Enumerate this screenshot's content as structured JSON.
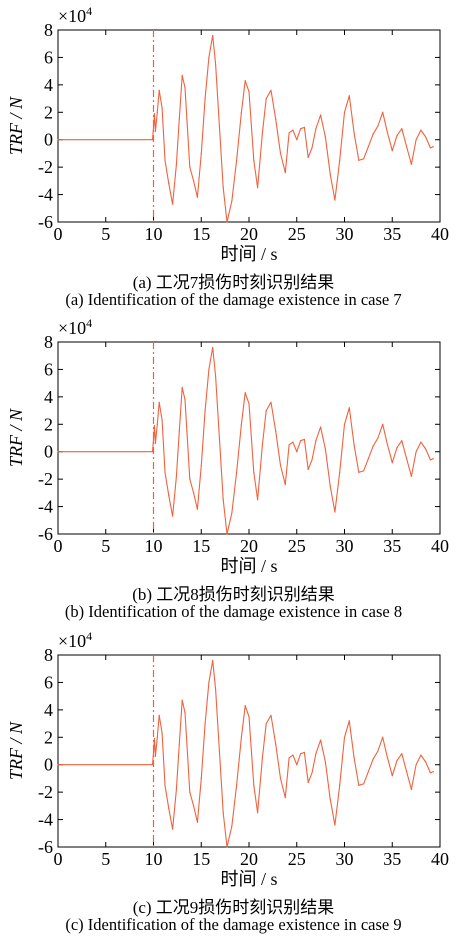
{
  "colors": {
    "signal": "#f0623e",
    "axis": "#000000"
  },
  "panels": [
    {
      "caption_zh": "(a) 工况7损伤时刻识别结果",
      "caption_en": "(a) Identification of the damage existence in case 7"
    },
    {
      "caption_zh": "(b) 工况8损伤时刻识别结果",
      "caption_en": "(b) Identification of the damage existence in case 8"
    },
    {
      "caption_zh": "(c) 工况9损伤时刻识别结果",
      "caption_en": "(c) Identification of the damage existence in case 9"
    }
  ],
  "chart_data": [
    {
      "type": "line",
      "xlabel": "时间 / s",
      "ylabel": "TRF / N",
      "yscale_label": "×10",
      "yscale_exp": "4",
      "xlim": [
        0,
        40
      ],
      "ylim": [
        -6,
        8
      ],
      "xticks": [
        0,
        5,
        10,
        15,
        20,
        25,
        30,
        35,
        40
      ],
      "yticks": [
        -6,
        -4,
        -2,
        0,
        2,
        4,
        6,
        8
      ],
      "damage_line_x": 10,
      "series": [
        {
          "x": [
            0,
            9.9,
            10.0,
            10.1,
            10.2,
            10.4,
            10.6,
            10.9,
            11.2,
            11.6,
            12.0,
            12.4,
            12.7,
            13.0,
            13.3,
            13.5,
            13.8,
            14.2,
            14.6,
            15.0,
            15.4,
            15.8,
            16.2,
            16.5,
            16.9,
            17.3,
            17.7,
            18.2,
            18.7,
            19.2,
            19.6,
            20.0,
            20.5,
            20.9,
            21.4,
            21.8,
            22.3,
            22.8,
            23.3,
            23.8,
            24.2,
            24.6,
            25.0,
            25.4,
            25.8,
            26.2,
            26.6,
            27.0,
            27.5,
            28.0,
            28.5,
            29.0,
            29.5,
            30.0,
            30.5,
            31.0,
            31.5,
            32.0,
            32.5,
            33.0,
            33.5,
            34.0,
            34.5,
            35.0,
            35.5,
            36.0,
            36.5,
            37.0,
            37.5,
            38.0,
            38.5,
            39.0,
            39.3
          ],
          "values": [
            0,
            0,
            0.9,
            1.9,
            0.6,
            2.0,
            3.6,
            2.3,
            -1.5,
            -3.2,
            -4.7,
            -1.8,
            1.5,
            4.7,
            3.8,
            1.5,
            -2.0,
            -3.0,
            -4.2,
            -1.0,
            3.0,
            6.0,
            7.6,
            5.5,
            1.0,
            -3.5,
            -6.0,
            -4.5,
            -1.5,
            2.0,
            4.3,
            3.5,
            -1.5,
            -3.5,
            0.5,
            3.0,
            3.6,
            1.5,
            -1.0,
            -2.4,
            0.5,
            0.7,
            0.0,
            0.8,
            0.9,
            -1.3,
            -0.6,
            0.8,
            1.8,
            0.2,
            -2.5,
            -4.4,
            -1.5,
            2.0,
            3.2,
            0.5,
            -1.5,
            -1.4,
            -0.5,
            0.4,
            1.0,
            2.0,
            0.5,
            -0.8,
            0.3,
            0.8,
            -0.5,
            -1.8,
            0.0,
            0.7,
            0.2,
            -0.6,
            -0.5
          ]
        }
      ]
    },
    {
      "type": "line",
      "xlabel": "时间 / s",
      "ylabel": "TRF / N",
      "yscale_label": "×10",
      "yscale_exp": "4",
      "xlim": [
        0,
        40
      ],
      "ylim": [
        -6,
        8
      ],
      "xticks": [
        0,
        5,
        10,
        15,
        20,
        25,
        30,
        35,
        40
      ],
      "yticks": [
        -6,
        -4,
        -2,
        0,
        2,
        4,
        6,
        8
      ],
      "damage_line_x": 10,
      "series": [
        {
          "x": [
            0,
            9.9,
            10.0,
            10.1,
            10.2,
            10.4,
            10.6,
            10.9,
            11.2,
            11.6,
            12.0,
            12.4,
            12.7,
            13.0,
            13.3,
            13.5,
            13.8,
            14.2,
            14.6,
            15.0,
            15.4,
            15.8,
            16.2,
            16.5,
            16.9,
            17.3,
            17.7,
            18.2,
            18.7,
            19.2,
            19.6,
            20.0,
            20.5,
            20.9,
            21.4,
            21.8,
            22.3,
            22.8,
            23.3,
            23.8,
            24.2,
            24.6,
            25.0,
            25.4,
            25.8,
            26.2,
            26.6,
            27.0,
            27.5,
            28.0,
            28.5,
            29.0,
            29.5,
            30.0,
            30.5,
            31.0,
            31.5,
            32.0,
            32.5,
            33.0,
            33.5,
            34.0,
            34.5,
            35.0,
            35.5,
            36.0,
            36.5,
            37.0,
            37.5,
            38.0,
            38.5,
            39.0,
            39.3
          ],
          "values": [
            0,
            0,
            0.9,
            1.9,
            0.6,
            2.0,
            3.6,
            2.3,
            -1.5,
            -3.2,
            -4.7,
            -1.8,
            1.5,
            4.7,
            3.8,
            1.5,
            -2.0,
            -3.0,
            -4.2,
            -1.0,
            3.0,
            6.0,
            7.6,
            5.5,
            1.0,
            -3.5,
            -6.0,
            -4.5,
            -1.5,
            2.0,
            4.3,
            3.5,
            -1.5,
            -3.5,
            0.5,
            3.0,
            3.6,
            1.5,
            -1.0,
            -2.4,
            0.5,
            0.7,
            0.0,
            0.8,
            0.9,
            -1.3,
            -0.6,
            0.8,
            1.8,
            0.2,
            -2.5,
            -4.4,
            -1.5,
            2.0,
            3.2,
            0.5,
            -1.5,
            -1.4,
            -0.5,
            0.4,
            1.0,
            2.0,
            0.5,
            -0.8,
            0.3,
            0.8,
            -0.5,
            -1.8,
            0.0,
            0.7,
            0.2,
            -0.6,
            -0.5
          ]
        }
      ]
    },
    {
      "type": "line",
      "xlabel": "时间 / s",
      "ylabel": "TRF / N",
      "yscale_label": "×10",
      "yscale_exp": "4",
      "xlim": [
        0,
        40
      ],
      "ylim": [
        -6,
        8
      ],
      "xticks": [
        0,
        5,
        10,
        15,
        20,
        25,
        30,
        35,
        40
      ],
      "yticks": [
        -6,
        -4,
        -2,
        0,
        2,
        4,
        6,
        8
      ],
      "damage_line_x": 10,
      "series": [
        {
          "x": [
            0,
            9.9,
            10.0,
            10.1,
            10.2,
            10.4,
            10.6,
            10.9,
            11.2,
            11.6,
            12.0,
            12.4,
            12.7,
            13.0,
            13.3,
            13.5,
            13.8,
            14.2,
            14.6,
            15.0,
            15.4,
            15.8,
            16.2,
            16.5,
            16.9,
            17.3,
            17.7,
            18.2,
            18.7,
            19.2,
            19.6,
            20.0,
            20.5,
            20.9,
            21.4,
            21.8,
            22.3,
            22.8,
            23.3,
            23.8,
            24.2,
            24.6,
            25.0,
            25.4,
            25.8,
            26.2,
            26.6,
            27.0,
            27.5,
            28.0,
            28.5,
            29.0,
            29.5,
            30.0,
            30.5,
            31.0,
            31.5,
            32.0,
            32.5,
            33.0,
            33.5,
            34.0,
            34.5,
            35.0,
            35.5,
            36.0,
            36.5,
            37.0,
            37.5,
            38.0,
            38.5,
            39.0,
            39.3
          ],
          "values": [
            0,
            0,
            0.9,
            1.9,
            0.6,
            2.0,
            3.6,
            2.3,
            -1.5,
            -3.2,
            -4.7,
            -1.8,
            1.5,
            4.7,
            3.8,
            1.5,
            -2.0,
            -3.0,
            -4.2,
            -1.0,
            3.0,
            6.0,
            7.6,
            5.5,
            1.0,
            -3.5,
            -6.0,
            -4.5,
            -1.5,
            2.0,
            4.3,
            3.5,
            -1.5,
            -3.5,
            0.5,
            3.0,
            3.6,
            1.5,
            -1.0,
            -2.4,
            0.5,
            0.7,
            0.0,
            0.8,
            0.9,
            -1.3,
            -0.6,
            0.8,
            1.8,
            0.2,
            -2.5,
            -4.4,
            -1.5,
            2.0,
            3.2,
            0.5,
            -1.5,
            -1.4,
            -0.5,
            0.4,
            1.0,
            2.0,
            0.5,
            -0.8,
            0.3,
            0.8,
            -0.5,
            -1.8,
            0.0,
            0.7,
            0.2,
            -0.6,
            -0.5
          ]
        }
      ]
    }
  ]
}
